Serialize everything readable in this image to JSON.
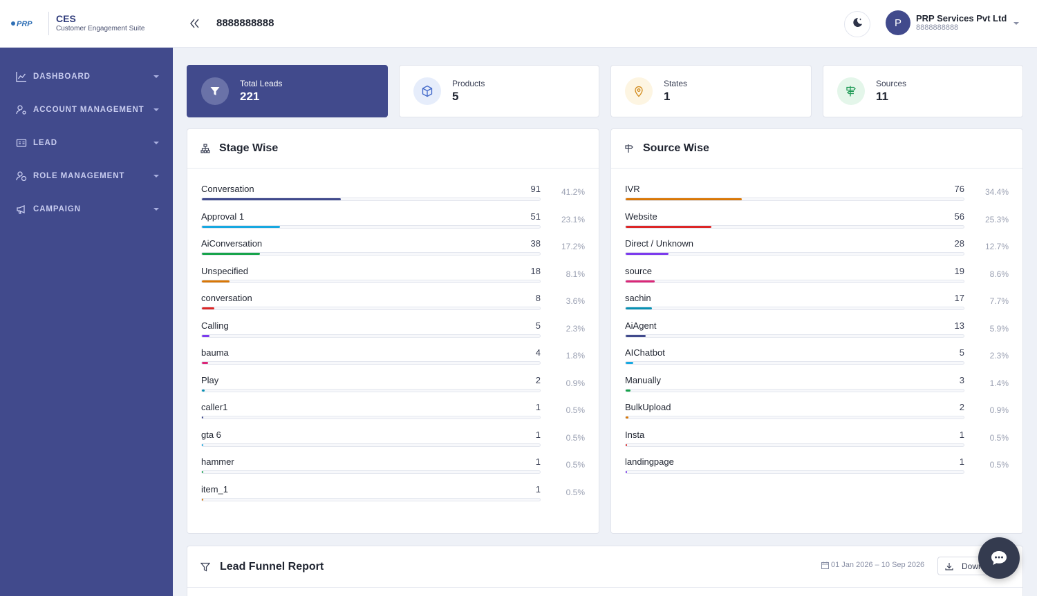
{
  "brand": {
    "title": "CES",
    "subtitle": "Customer Engagement Suite",
    "logo_text": "PRP"
  },
  "sidebar": {
    "items": [
      {
        "label": "DASHBOARD",
        "icon": "chart-line-icon"
      },
      {
        "label": "ACCOUNT MANAGEMENT",
        "icon": "user-gear-icon"
      },
      {
        "label": "LEAD",
        "icon": "id-card-icon"
      },
      {
        "label": "ROLE MANAGEMENT",
        "icon": "user-shield-icon"
      },
      {
        "label": "CAMPAIGN",
        "icon": "megaphone-icon"
      }
    ]
  },
  "header": {
    "title": "8888888888",
    "user": {
      "initial": "P",
      "name": "PRP Services Pvt Ltd",
      "phone": "8888888888"
    }
  },
  "stats": [
    {
      "label": "Total Leads",
      "value": "221",
      "icon": "filter-icon"
    },
    {
      "label": "Products",
      "value": "5",
      "icon": "box-icon"
    },
    {
      "label": "States",
      "value": "1",
      "icon": "map-pin-icon"
    },
    {
      "label": "Sources",
      "value": "11",
      "icon": "signpost-icon"
    }
  ],
  "stage_wise": {
    "title": "Stage Wise",
    "rows": [
      {
        "name": "Conversation",
        "count": "91",
        "pct": "41.2%",
        "fraction": 0.412,
        "color": "#414a8c"
      },
      {
        "name": "Approval 1",
        "count": "51",
        "pct": "23.1%",
        "fraction": 0.231,
        "color": "#17a8e0"
      },
      {
        "name": "AiConversation",
        "count": "38",
        "pct": "17.2%",
        "fraction": 0.172,
        "color": "#16a34a"
      },
      {
        "name": "Unspecified",
        "count": "18",
        "pct": "8.1%",
        "fraction": 0.081,
        "color": "#d97706"
      },
      {
        "name": "conversation",
        "count": "8",
        "pct": "3.6%",
        "fraction": 0.036,
        "color": "#dc2626"
      },
      {
        "name": "Calling",
        "count": "5",
        "pct": "2.3%",
        "fraction": 0.023,
        "color": "#7c3aed"
      },
      {
        "name": "bauma",
        "count": "4",
        "pct": "1.8%",
        "fraction": 0.018,
        "color": "#db2777"
      },
      {
        "name": "Play",
        "count": "2",
        "pct": "0.9%",
        "fraction": 0.009,
        "color": "#0891b2"
      },
      {
        "name": "caller1",
        "count": "1",
        "pct": "0.5%",
        "fraction": 0.005,
        "color": "#414a8c"
      },
      {
        "name": "gta 6",
        "count": "1",
        "pct": "0.5%",
        "fraction": 0.005,
        "color": "#17a8e0"
      },
      {
        "name": "hammer",
        "count": "1",
        "pct": "0.5%",
        "fraction": 0.005,
        "color": "#16a34a"
      },
      {
        "name": "item_1",
        "count": "1",
        "pct": "0.5%",
        "fraction": 0.005,
        "color": "#d97706"
      }
    ]
  },
  "source_wise": {
    "title": "Source Wise",
    "rows": [
      {
        "name": "IVR",
        "count": "76",
        "pct": "34.4%",
        "fraction": 0.344,
        "color": "#d97706"
      },
      {
        "name": "Website",
        "count": "56",
        "pct": "25.3%",
        "fraction": 0.253,
        "color": "#dc2626"
      },
      {
        "name": "Direct / Unknown",
        "count": "28",
        "pct": "12.7%",
        "fraction": 0.127,
        "color": "#7c3aed"
      },
      {
        "name": "source",
        "count": "19",
        "pct": "8.6%",
        "fraction": 0.086,
        "color": "#db2777"
      },
      {
        "name": "sachin",
        "count": "17",
        "pct": "7.7%",
        "fraction": 0.077,
        "color": "#0891b2"
      },
      {
        "name": "AiAgent",
        "count": "13",
        "pct": "5.9%",
        "fraction": 0.059,
        "color": "#414a8c"
      },
      {
        "name": "AIChatbot",
        "count": "5",
        "pct": "2.3%",
        "fraction": 0.023,
        "color": "#17a8e0"
      },
      {
        "name": "Manually",
        "count": "3",
        "pct": "1.4%",
        "fraction": 0.014,
        "color": "#16a34a"
      },
      {
        "name": "BulkUpload",
        "count": "2",
        "pct": "0.9%",
        "fraction": 0.009,
        "color": "#d97706"
      },
      {
        "name": "Insta",
        "count": "1",
        "pct": "0.5%",
        "fraction": 0.005,
        "color": "#dc2626"
      },
      {
        "name": "landingpage",
        "count": "1",
        "pct": "0.5%",
        "fraction": 0.005,
        "color": "#7c3aed"
      }
    ]
  },
  "funnel": {
    "title": "Lead Funnel Report",
    "date_range": "01 Jan 2026 – 10 Sep 2026",
    "download_label": "Download"
  },
  "colors": {
    "primary": "#414a8c",
    "background": "#eef1f7"
  }
}
